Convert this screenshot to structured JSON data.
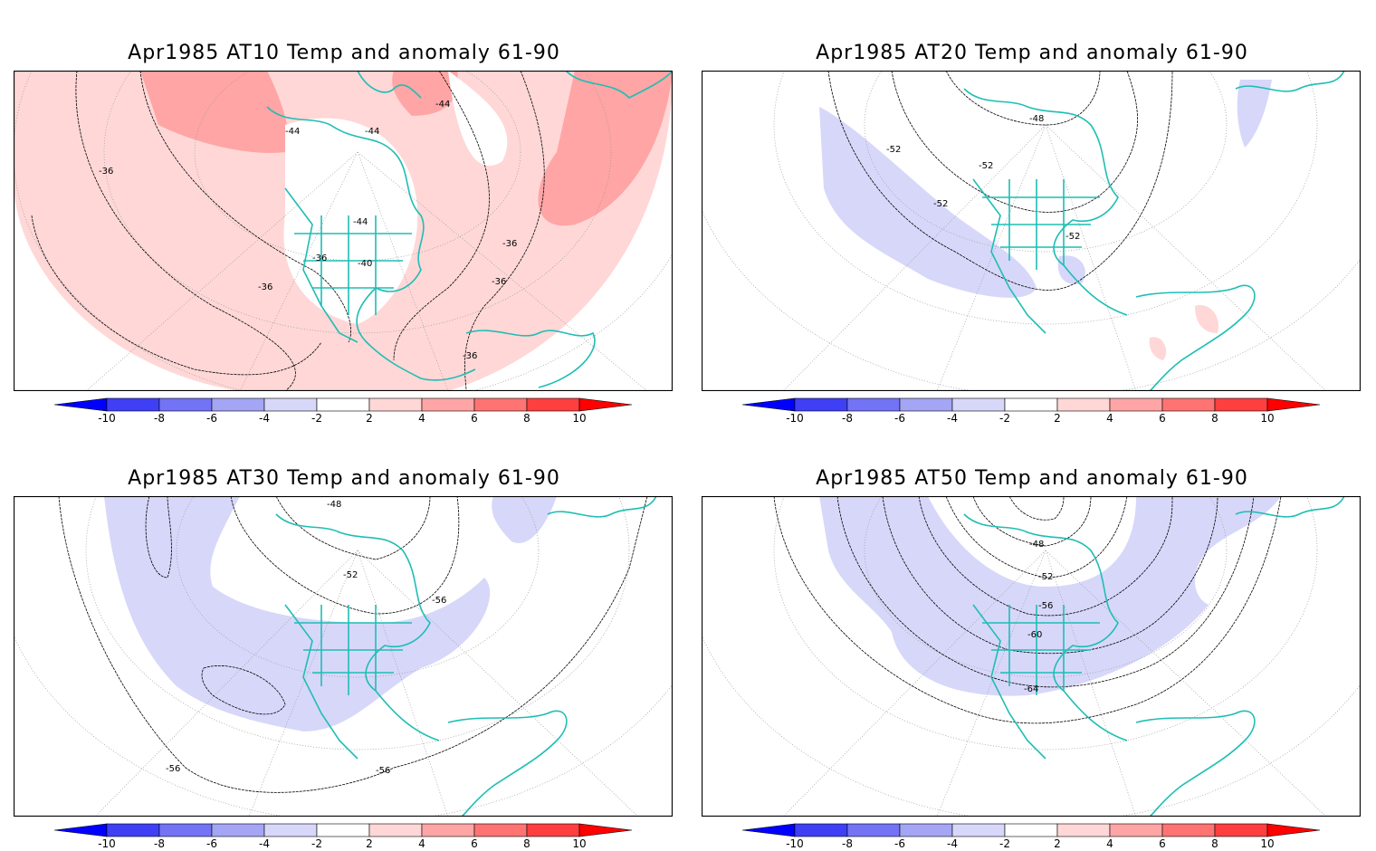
{
  "panels": [
    {
      "title": "Apr1985 AT10 Temp and anomaly 61-90",
      "contour_labels": [
        "-44",
        "-44",
        "-44",
        "-36",
        "-44",
        "-36",
        "-40",
        "-36",
        "-36",
        "-36",
        "-36"
      ],
      "anomaly": "warm"
    },
    {
      "title": "Apr1985 AT20 Temp and anomaly 61-90",
      "contour_labels": [
        "-48",
        "-52",
        "-52",
        "-52",
        "-52"
      ],
      "anomaly": "weak-cold"
    },
    {
      "title": "Apr1985 AT30 Temp and anomaly 61-90",
      "contour_labels": [
        "-48",
        "-52",
        "-56",
        "-56",
        "-56"
      ],
      "anomaly": "cold"
    },
    {
      "title": "Apr1985 AT50 Temp and anomaly 61-90",
      "contour_labels": [
        "-48",
        "-52",
        "-56",
        "-60",
        "-64"
      ],
      "anomaly": "cold"
    }
  ],
  "colorbar": {
    "labels": [
      "-10",
      "-8",
      "-6",
      "-4",
      "-2",
      "2",
      "4",
      "6",
      "8",
      "10"
    ],
    "colors": [
      "#0000ff",
      "#3f3ff5",
      "#7373f5",
      "#a5a5f5",
      "#d7d7fa",
      "#ffffff",
      "#ffd7d7",
      "#ffa5a5",
      "#ff7373",
      "#ff3f3f",
      "#ff0000"
    ]
  },
  "colors": {
    "coast": "#1ebeb4",
    "warm": "#ffd7d7",
    "warm2": "#ffa5a5",
    "cold": "#d7d7fa"
  }
}
